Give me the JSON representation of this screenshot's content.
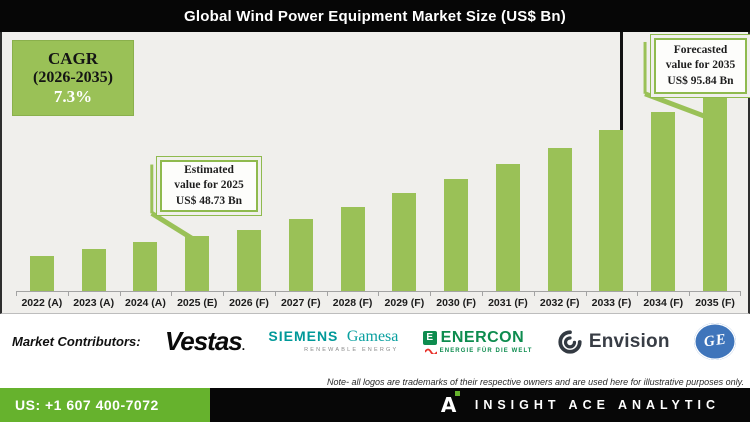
{
  "header": {
    "title": "Global Wind Power Equipment Market Size (US$ Bn)"
  },
  "cagr": {
    "line1": "CAGR",
    "line2": "(2026-2035)",
    "value": "7.3%"
  },
  "chart_data": {
    "type": "bar",
    "title": "Global Wind Power Equipment Market Size (US$ Bn)",
    "unit": "US$ Bn",
    "categories": [
      "2022 (A)",
      "2023 (A)",
      "2024 (A)",
      "2025 (E)",
      "2026 (F)",
      "2027 (F)",
      "2028 (F)",
      "2029 (F)",
      "2030 (F)",
      "2031 (F)",
      "2032 (F)",
      "2033 (F)",
      "2034 (F)",
      "2035 (F)"
    ],
    "values": [
      42.5,
      44.6,
      46.8,
      48.73,
      50.9,
      54.5,
      58.4,
      62.7,
      67.3,
      72.2,
      77.5,
      83.2,
      89.3,
      95.84
    ],
    "labeled_points": {
      "2025 (E)": 48.73,
      "2035 (F)": 95.84
    },
    "cagr_2026_2035_pct": 7.3,
    "bar_color": "#9ac157",
    "value_axis": {
      "visible": false,
      "display_range": [
        31,
        96
      ]
    },
    "legend": null,
    "grid": false,
    "annotations": {
      "estimated": {
        "line1": "Estimated",
        "line2": "value for 2025",
        "line3": "US$ 48.73 Bn"
      },
      "forecasted": {
        "line1": "Forecasted",
        "line2": "value for 2035",
        "line3": "US$ 95.84 Bn"
      }
    }
  },
  "contributors": {
    "label": "Market Contributors:",
    "vestas": {
      "name": "Vestas",
      "suffix": "."
    },
    "siemens_gamesa": {
      "word1": "SIEMENS",
      "word2": "Gamesa",
      "tagline": "RENEWABLE ENERGY"
    },
    "enercon": {
      "mark_letter": "E",
      "name": "ENERCON",
      "tagline": "ENERGIE FÜR DIE WELT"
    },
    "envision": {
      "name": "Envision"
    },
    "ge": {
      "monogram": "GE"
    }
  },
  "note": "Note- all logos are trademarks of their respective owners and are used here for illustrative purposes only.",
  "footer": {
    "phone": "US: +1 607 400-7072",
    "logo_letter": "A",
    "brand": "INSIGHT ACE ANALYTIC"
  }
}
